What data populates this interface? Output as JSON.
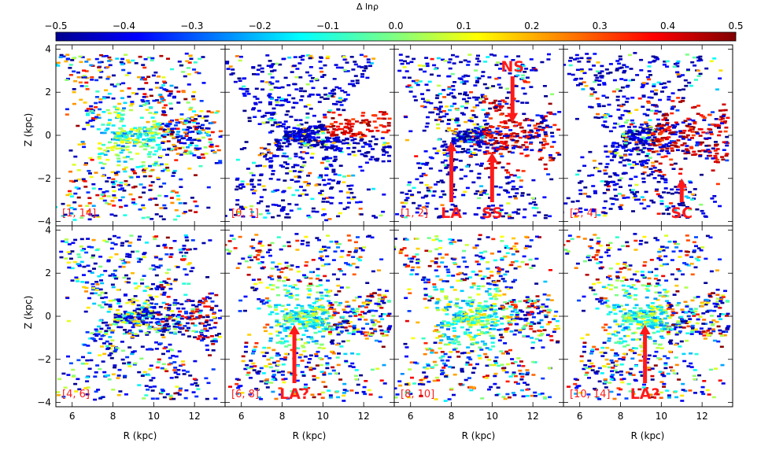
{
  "chart_data": {
    "type": "scatter",
    "colorbar": {
      "label": "Δ lnρ",
      "ticks": [
        "−0.5",
        "−0.4",
        "−0.3",
        "−0.2",
        "−0.1",
        "0.0",
        "0.1",
        "0.2",
        "0.3",
        "0.4",
        "0.5"
      ],
      "range": [
        -0.5,
        0.5
      ]
    },
    "xlabel": "R (kpc)",
    "ylabel": "Z (kpc)",
    "xlim": [
      5.2,
      13.5
    ],
    "ylim": [
      -4.2,
      4.2
    ],
    "xticks": [
      6,
      8,
      10,
      12
    ],
    "yticks": [
      -4,
      -2,
      0,
      2,
      4
    ],
    "panels": [
      {
        "label": "[1, 14]",
        "mode": "mixed",
        "annotations": []
      },
      {
        "label": "[0, 1]",
        "mode": "low",
        "annotations": []
      },
      {
        "label": "[1, 2]",
        "mode": "lowhigh",
        "annotations": [
          {
            "text": "NS",
            "x": 11.0,
            "y": 0.6,
            "dir": "down"
          },
          {
            "text": "LA",
            "x": 8.0,
            "y": -0.3,
            "dir": "up"
          },
          {
            "text": "SS",
            "x": 10.0,
            "y": -0.8,
            "dir": "up"
          }
        ]
      },
      {
        "label": "[2, 4]",
        "mode": "lowhigh",
        "annotations": [
          {
            "text": "SC",
            "x": 11.0,
            "y": -2.0,
            "dir": "up"
          }
        ]
      },
      {
        "label": "[4, 6]",
        "mode": "lowmid",
        "annotations": []
      },
      {
        "label": "[6, 8]",
        "mode": "mixed",
        "annotations": [
          {
            "text": "LA?",
            "x": 8.6,
            "y": -0.4,
            "dir": "up"
          }
        ]
      },
      {
        "label": "[8, 10]",
        "mode": "mixed",
        "annotations": []
      },
      {
        "label": "[10, 14]",
        "mode": "mixed",
        "annotations": [
          {
            "text": "LA?",
            "x": 9.2,
            "y": -0.4,
            "dir": "up"
          }
        ]
      }
    ]
  }
}
